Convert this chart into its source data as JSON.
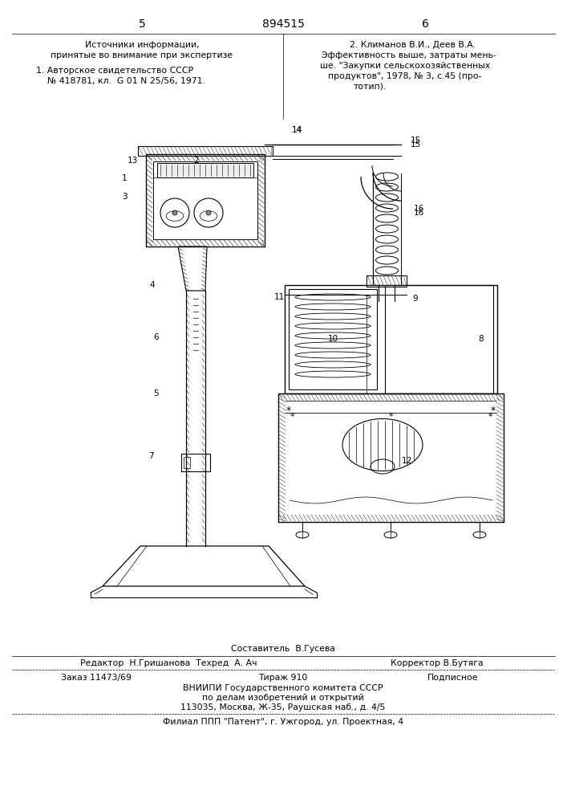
{
  "bg_color": "#ffffff",
  "page_number_left": "5",
  "page_number_center": "894515",
  "page_number_right": "6",
  "top_left_line1": "Источники информации,",
  "top_left_line2": "принятые во внимание при экспертизе",
  "ref1_line1": "1. Авторское свидетельство СССР",
  "ref1_line2": "№ 418781, кл.  G 01 N 25/56, 1971.",
  "ref2_line1": "2. Климанов В.И., Деев В.А.",
  "ref2_line2": "Эффективность выше, затраты мень-",
  "ref2_line3": "ше. \"Закупки сельскохозяйственных",
  "ref2_line4": "продуктов\", 1978, № 3, с.45 (про-",
  "ref2_line5": "тотип).",
  "composer": "Составитель  В.Гусева",
  "editor_line": "Редактор  Н.Гришанова  Техред  А. Ач",
  "corrector_line": "Корректор В.Бутяга",
  "order": "Заказ 11473/69",
  "circulation": "Тираж 910",
  "subscription": "Подписное",
  "institute": "ВНИИПИ Государственного комитета СССР",
  "dept": "по делам изобретений и открытий",
  "address": "113035, Москва, Ж-35, Раушская наб., д. 4/5",
  "filial": "Филиал ППП \"Патент\", г. Ужгород, ул. Проектная, 4"
}
